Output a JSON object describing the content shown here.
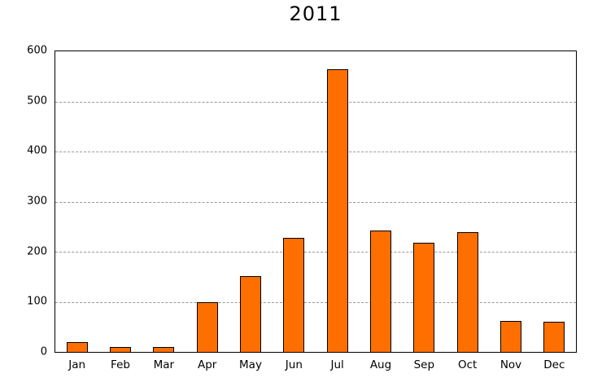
{
  "page": {
    "background_color": "#FFFFFF"
  },
  "chart_data": {
    "type": "bar",
    "title": "2011",
    "categories": [
      "Jan",
      "Feb",
      "Mar",
      "Apr",
      "May",
      "Jun",
      "Jul",
      "Aug",
      "Sep",
      "Oct",
      "Nov",
      "Dec"
    ],
    "values": [
      20,
      10,
      10,
      99,
      152,
      228,
      565,
      242,
      218,
      239,
      62,
      60
    ],
    "xlabel": "",
    "ylabel": "",
    "ylim": [
      0,
      600
    ],
    "ytick_step": 100,
    "yticks": [
      0,
      100,
      200,
      300,
      400,
      500,
      600
    ],
    "gridlines": [
      100,
      200,
      300,
      400,
      500
    ],
    "grid": "horizontal-dashed",
    "legend": "none",
    "bar_fill_color": "#FF6F00",
    "bar_border_color": "#000000",
    "grid_color": "#999999",
    "axis_color": "#000000",
    "text_color": "#000000"
  }
}
